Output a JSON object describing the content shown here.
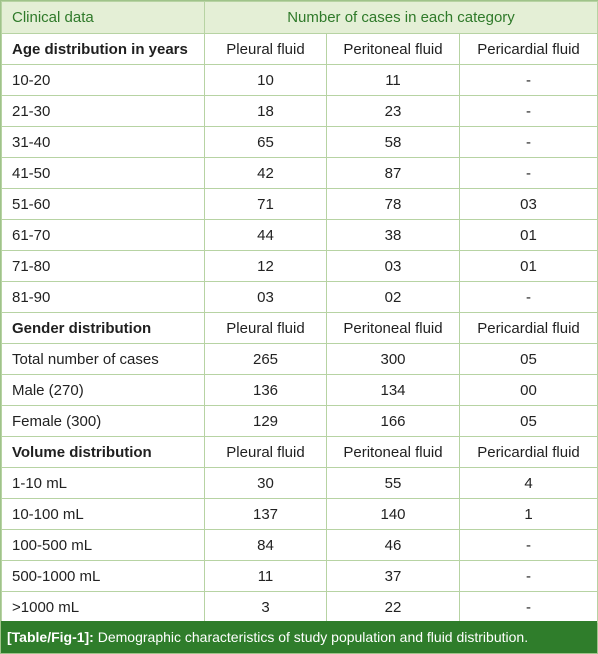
{
  "header": {
    "label": "Clinical data",
    "span": "Number of cases in each category"
  },
  "sections": [
    {
      "heading": [
        "Age distribution in years",
        "Pleural fluid",
        "Peritoneal fluid",
        "Pericardial fluid"
      ],
      "rows": [
        [
          "10-20",
          "10",
          "11",
          "-"
        ],
        [
          "21-30",
          "18",
          "23",
          "-"
        ],
        [
          "31-40",
          "65",
          "58",
          "-"
        ],
        [
          "41-50",
          "42",
          "87",
          "-"
        ],
        [
          "51-60",
          "71",
          "78",
          "03"
        ],
        [
          "61-70",
          "44",
          "38",
          "01"
        ],
        [
          "71-80",
          "12",
          "03",
          "01"
        ],
        [
          "81-90",
          "03",
          "02",
          "-"
        ]
      ]
    },
    {
      "heading": [
        "Gender distribution",
        "Pleural fluid",
        "Peritoneal fluid",
        "Pericardial fluid"
      ],
      "rows": [
        [
          "Total number of cases",
          "265",
          "300",
          "05"
        ],
        [
          "Male (270)",
          "136",
          "134",
          "00"
        ],
        [
          "Female (300)",
          "129",
          "166",
          "05"
        ]
      ]
    },
    {
      "heading": [
        "Volume distribution",
        "Pleural fluid",
        "Peritoneal fluid",
        "Pericardial fluid"
      ],
      "rows": [
        [
          "1-10 mL",
          "30",
          "55",
          "4"
        ],
        [
          "10-100 mL",
          "137",
          "140",
          "1"
        ],
        [
          "100-500 mL",
          "84",
          "46",
          "-"
        ],
        [
          "500-1000 mL",
          "11",
          "37",
          "-"
        ],
        [
          ">1000 mL",
          "3",
          "22",
          "-"
        ]
      ]
    }
  ],
  "caption": {
    "label": "[Table/Fig-1]:",
    "text": "Demographic characteristics of study population and fluid distribution."
  }
}
